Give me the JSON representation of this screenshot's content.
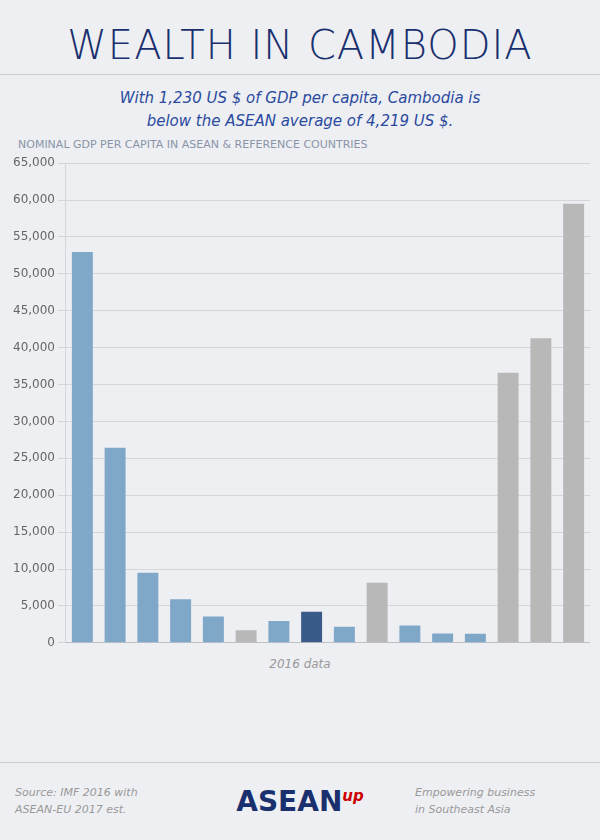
{
  "chart_data": {
    "type": "bar",
    "title": "WEALTH IN CAMBODIA",
    "subtitle": "With 1,230 US $ of GDP per capita, Cambodia is\nbelow the ASEAN average of 4,219 US $.",
    "annotations": [
      "NOMINAL GDP PER CAPITA IN ASEAN & REFERENCE COUNTRIES",
      "2016 data",
      "Source: IMF 2016 with\nASEAN-EU 2017 est.",
      "ASEAN",
      "up",
      "Empowering business\nin Southeast Asia"
    ],
    "categories": [
      null,
      null,
      null,
      null,
      null,
      null,
      null,
      null,
      null,
      null,
      null,
      null,
      null,
      null,
      null,
      null
    ],
    "values": [
      52960,
      26423,
      9502,
      5899,
      3570,
      1709,
      2951,
      4219,
      2171,
      8123,
      2353,
      1269,
      1230,
      36593,
      41275,
      59495
    ],
    "colors": [
      "#7fa7c8",
      "#7fa7c8",
      "#7fa7c8",
      "#7fa7c8",
      "#7fa7c8",
      "#b8b8b8",
      "#7fa7c8",
      "#3a5a8a",
      "#7fa7c8",
      "#b8b8b8",
      "#7fa7c8",
      "#7fa7c8",
      "#7fa7c8",
      "#b8b8b8",
      "#b8b8b8",
      "#b8b8b8"
    ],
    "ylim": [
      0,
      65000
    ],
    "yticks": [
      0,
      {
        "value": 5000,
        "label": "5,000"
      },
      {
        "value": 10000,
        "label": "10,000"
      },
      {
        "value": 15000,
        "label": "15,000"
      },
      {
        "value": 20000,
        "label": "20,000"
      },
      {
        "value": 25000,
        "label": "25,000"
      },
      {
        "value": 30000,
        "label": "30,000"
      },
      {
        "value": 35000,
        "label": "35,000"
      },
      {
        "value": 40000,
        "label": "40,000"
      },
      {
        "value": 45000,
        "label": "45,000"
      },
      {
        "value": 50000,
        "label": "50,000"
      },
      {
        "value": 55000,
        "label": "55,000"
      },
      {
        "value": 60000,
        "label": "60,000"
      },
      {
        "value": 65000,
        "label": "65,000"
      }
    ],
    "grid": true,
    "tick_labels": "y"
  }
}
